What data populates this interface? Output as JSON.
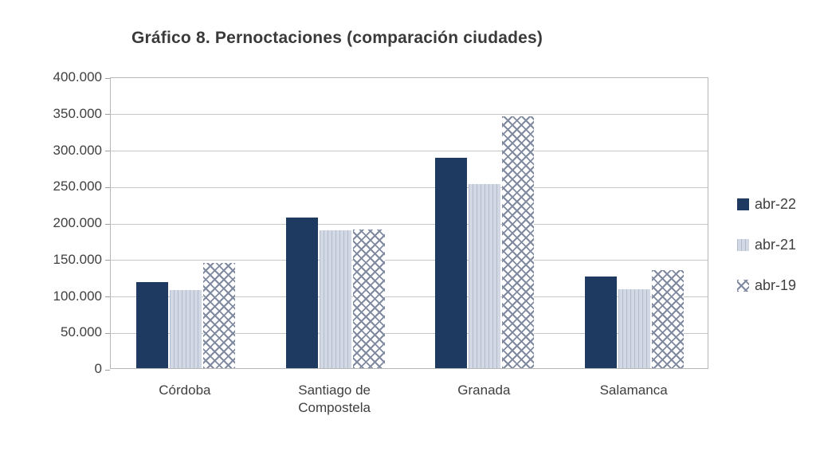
{
  "chart_data": {
    "type": "bar",
    "title": "Gráfico 8. Pernoctaciones (comparación ciudades)",
    "categories": [
      "Córdoba",
      "Santiago de Compostela",
      "Granada",
      "Salamanca"
    ],
    "series": [
      {
        "name": "abr-22",
        "pattern": "solid",
        "color": "#1f3a60",
        "values": [
          118000,
          207000,
          288000,
          126000
        ]
      },
      {
        "name": "abr-21",
        "pattern": "vertical-stripes",
        "color": "#d2d8e4",
        "values": [
          107000,
          189000,
          252000,
          108000
        ]
      },
      {
        "name": "abr-19",
        "pattern": "diagonal-crosshatch",
        "color": "#7f8aa0",
        "values": [
          144000,
          190000,
          345000,
          134000
        ]
      }
    ],
    "ylim": [
      0,
      400000
    ],
    "yticks": [
      {
        "value": 0,
        "label": "0"
      },
      {
        "value": 50000,
        "label": "50.000"
      },
      {
        "value": 100000,
        "label": "100.000"
      },
      {
        "value": 150000,
        "label": "150.000"
      },
      {
        "value": 200000,
        "label": "200.000"
      },
      {
        "value": 250000,
        "label": "250.000"
      },
      {
        "value": 300000,
        "label": "300.000"
      },
      {
        "value": 350000,
        "label": "350.000"
      },
      {
        "value": 400000,
        "label": "400.000"
      }
    ],
    "grid": "horizontal",
    "legend_position": "right",
    "gridline_color": "#c6c6c6",
    "axis_border_color": "#b7b7b7",
    "text_color": "#3f3f3f"
  }
}
